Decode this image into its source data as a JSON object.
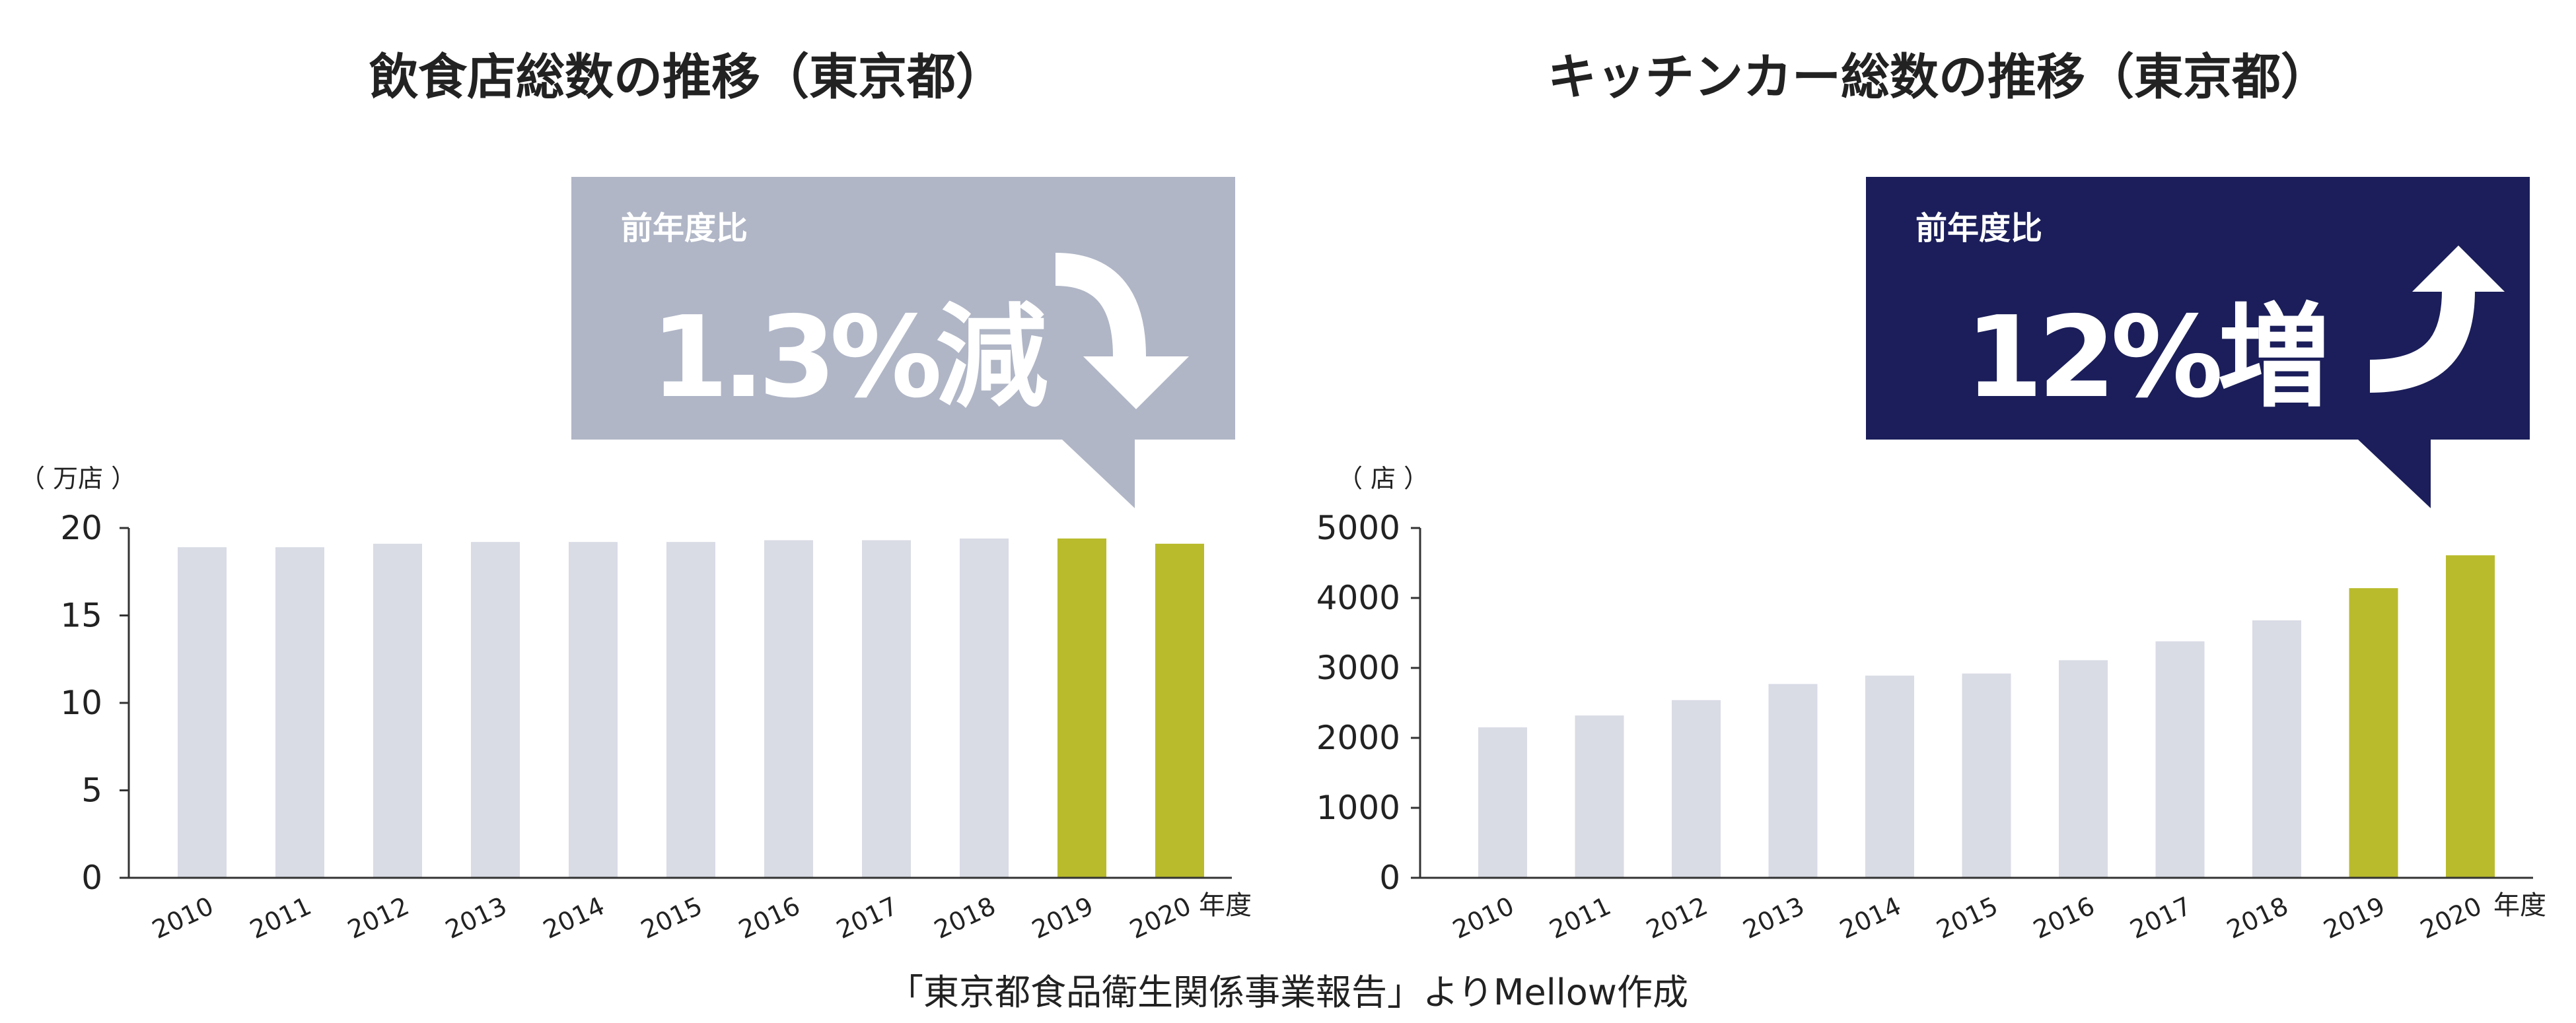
{
  "colors": {
    "bar_normal": "#d9dbe5",
    "bar_highlight": "#b9bb2c",
    "callout_left": "#b0b6c6",
    "callout_right": "#1b1e5a",
    "axis": "#333333",
    "text": "#222222"
  },
  "chart_data": [
    {
      "type": "bar",
      "title": "飲食店総数の推移（東京都）",
      "unit_label": "（ 万店 ）",
      "xlabel": "年度",
      "categories": [
        "2010",
        "2011",
        "2012",
        "2013",
        "2014",
        "2015",
        "2016",
        "2017",
        "2018",
        "2019",
        "2020"
      ],
      "values": [
        18.9,
        18.9,
        19.1,
        19.2,
        19.2,
        19.2,
        19.3,
        19.3,
        19.4,
        19.4,
        19.1
      ],
      "highlight": [
        false,
        false,
        false,
        false,
        false,
        false,
        false,
        false,
        false,
        true,
        true
      ],
      "ylim": [
        0,
        20
      ],
      "yticks": [
        0,
        5,
        10,
        15,
        20
      ],
      "callout": {
        "label": "前年度比",
        "value": "1.3%減",
        "direction": "down",
        "color": "#b0b6c6",
        "arrow_icon": "curved-arrow-down-icon"
      }
    },
    {
      "type": "bar",
      "title": "キッチンカー総数の推移（東京都）",
      "unit_label": "（ 店 ）",
      "xlabel": "年度",
      "categories": [
        "2010",
        "2011",
        "2012",
        "2013",
        "2014",
        "2015",
        "2016",
        "2017",
        "2018",
        "2019",
        "2020"
      ],
      "values": [
        2150,
        2320,
        2540,
        2770,
        2890,
        2920,
        3110,
        3380,
        3680,
        4140,
        4610
      ],
      "highlight": [
        false,
        false,
        false,
        false,
        false,
        false,
        false,
        false,
        false,
        true,
        true
      ],
      "ylim": [
        0,
        5000
      ],
      "yticks": [
        0,
        1000,
        2000,
        3000,
        4000,
        5000
      ],
      "callout": {
        "label": "前年度比",
        "value": "12%増",
        "direction": "up",
        "color": "#1b1e5a",
        "arrow_icon": "curved-arrow-up-icon"
      }
    }
  ],
  "source_note": "「東京都食品衛生関係事業報告」よりMellow作成"
}
